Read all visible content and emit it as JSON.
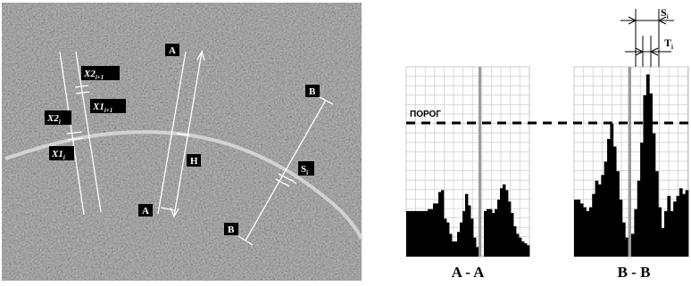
{
  "image_labels": {
    "a_top": "A",
    "a_bottom": "A",
    "b_top": "B",
    "b_bottom": "B",
    "h": "H",
    "s_image": "S",
    "s_image_sub": "i",
    "x2_next": "X2",
    "x2_next_sub": "i+1",
    "x1_next": "X1",
    "x1_next_sub": "i+1",
    "x2_cur": "X2",
    "x2_cur_sub": "i",
    "x1_cur": "X1",
    "x1_cur_sub": "i"
  },
  "threshold_label": "ПОРОГ",
  "profile_aa": {
    "title": "A - A",
    "values": [
      24,
      24,
      24,
      24,
      24,
      24,
      24,
      24,
      25,
      25,
      28,
      28,
      34,
      35,
      20,
      18,
      12,
      8,
      8,
      13,
      18,
      24,
      33,
      27,
      20,
      10,
      5,
      0,
      0,
      24,
      25,
      25,
      23,
      25,
      30,
      36,
      38,
      35,
      29,
      23,
      16,
      12,
      10,
      8,
      7,
      6
    ],
    "gray_index": 27
  },
  "profile_bb": {
    "title": "B - B",
    "values": [
      30,
      30,
      28,
      26,
      24,
      26,
      33,
      40,
      38,
      43,
      50,
      62,
      70,
      58,
      45,
      30,
      18,
      10,
      8,
      12,
      25,
      40,
      60,
      85,
      96,
      86,
      65,
      45,
      26,
      15,
      24,
      32,
      24,
      29,
      32,
      36,
      33,
      35
    ],
    "gray_index": 18,
    "s_label": "S",
    "s_sub": "i",
    "t_label": "T",
    "t_sub": "i"
  }
}
